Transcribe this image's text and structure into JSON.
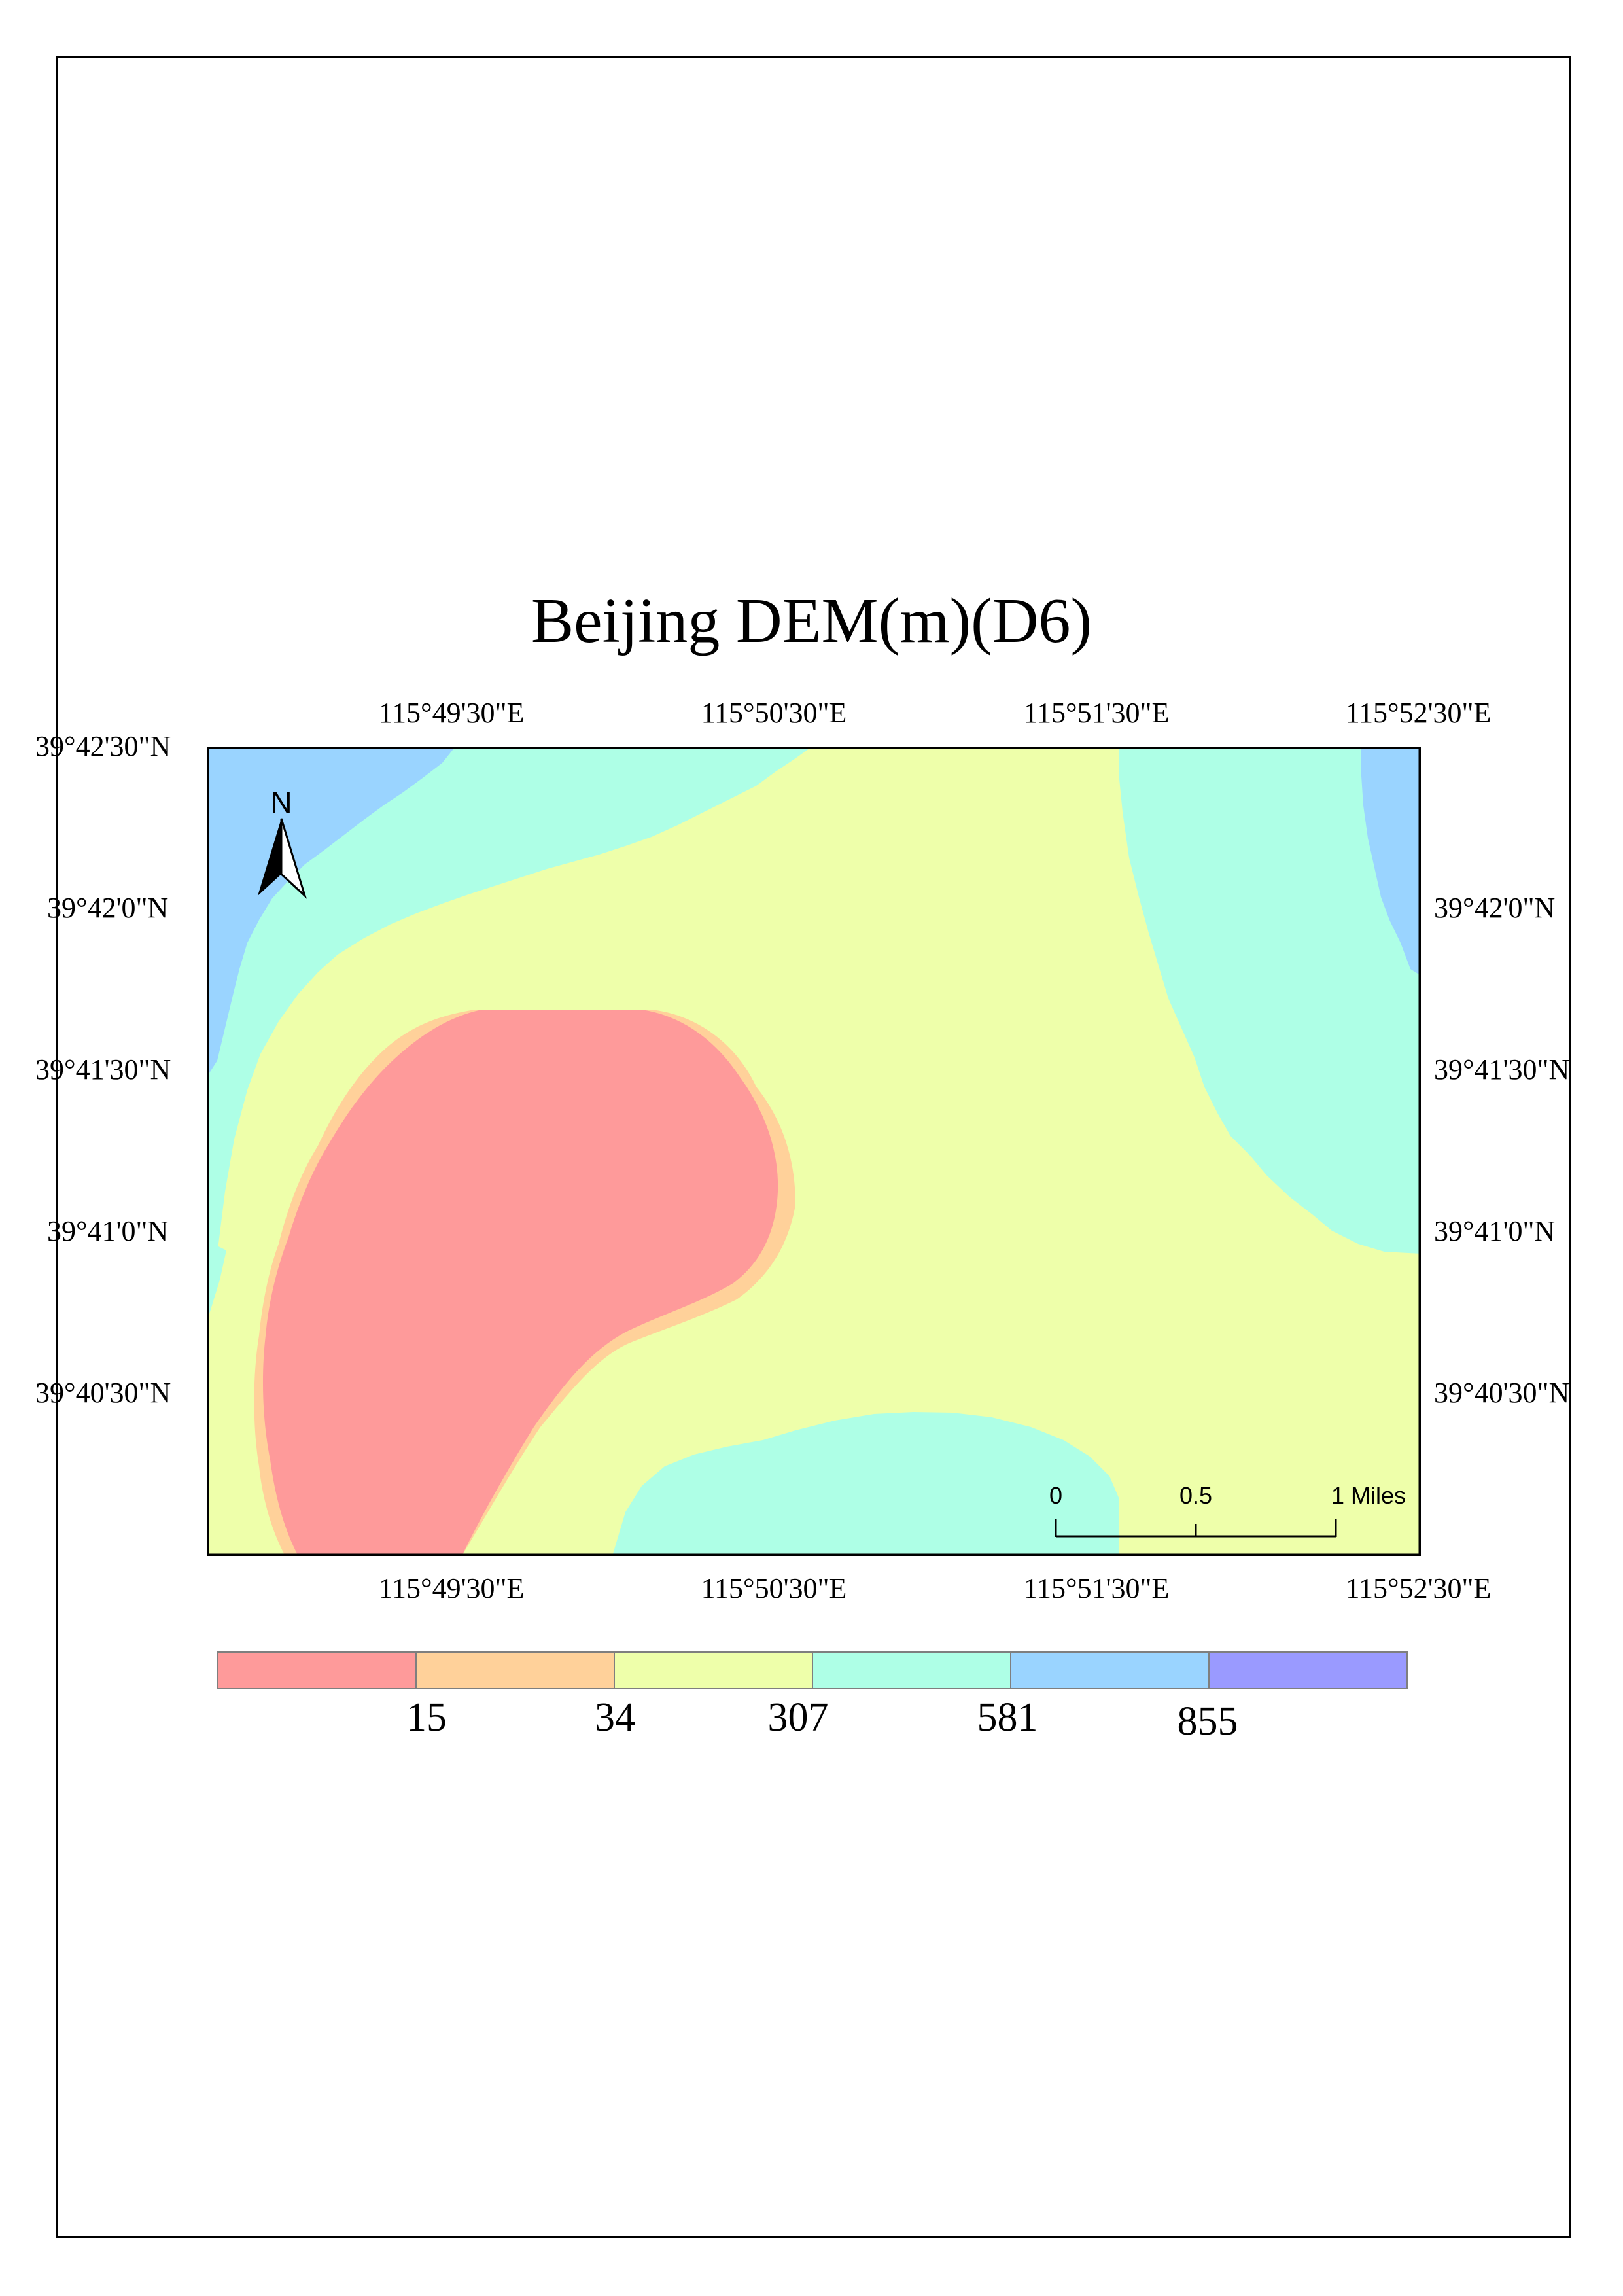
{
  "map": {
    "title": "Beijing DEM(m)(D6)",
    "north_arrow_label": "N",
    "lon_ticks": [
      "115°49'30\"E",
      "115°50'30\"E",
      "115°51'30\"E",
      "115°52'30\"E"
    ],
    "lat_ticks": [
      "39°42'30\"N",
      "39°42'0\"N",
      "39°41'30\"N",
      "39°41'0\"N",
      "39°40'30\"N"
    ],
    "scale_bar": {
      "labels": [
        "0",
        "0.5",
        "1 Miles"
      ],
      "values": [
        0,
        0.5,
        1
      ],
      "units": "Miles"
    }
  },
  "legend": {
    "classes": [
      {
        "color": "#fe9a9a"
      },
      {
        "color": "#ffd19a"
      },
      {
        "color": "#eeffaa"
      },
      {
        "color": "#aeffe6"
      },
      {
        "color": "#9ad4ff"
      },
      {
        "color": "#9a9aff"
      }
    ],
    "break_labels": [
      "15",
      "34",
      "307",
      "581",
      "855"
    ]
  },
  "colors": {
    "class_15": "#fe9a9a",
    "class_34": "#ffd19a",
    "class_307": "#eeffaa",
    "class_581": "#aeffe6",
    "class_855": "#9ad4ff",
    "class_max": "#9a9aff"
  }
}
